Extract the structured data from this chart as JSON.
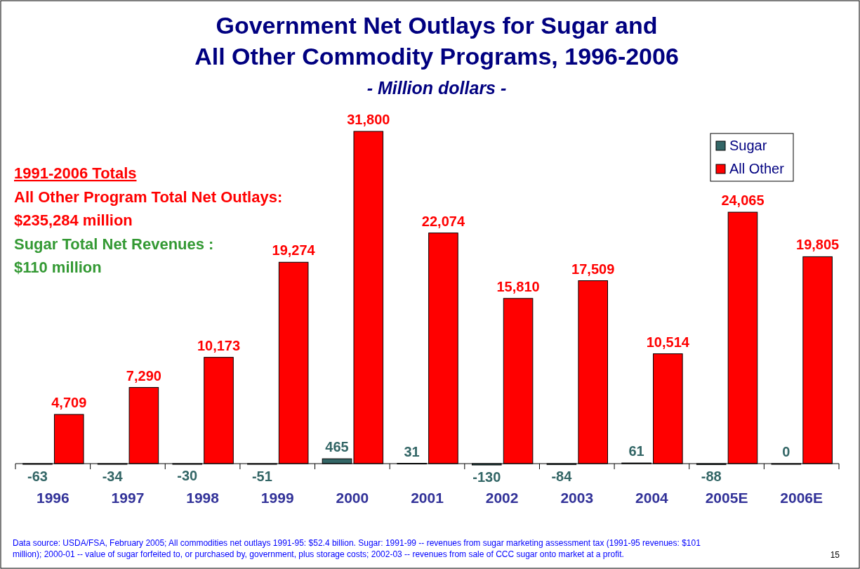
{
  "chart_data": {
    "type": "bar",
    "title": "Government Net Outlays for Sugar and\nAll Other Commodity Programs, 1996-2006",
    "subtitle": "- Million dollars -",
    "categories": [
      "1996",
      "1997",
      "1998",
      "1999",
      "2000",
      "2001",
      "2002",
      "2003",
      "2004",
      "2005E",
      "2006E"
    ],
    "series": [
      {
        "name": "Sugar",
        "color": "#336666",
        "values": [
          -63,
          -34,
          -30,
          -51,
          465,
          31,
          -130,
          -84,
          61,
          -88,
          0
        ],
        "value_labels": [
          "-63",
          "-34",
          "-30",
          "-51",
          "465",
          "31",
          "-130",
          "-84",
          "61",
          "-88",
          "0"
        ]
      },
      {
        "name": "All Other",
        "color": "#ff0000",
        "values": [
          4709,
          7290,
          10173,
          19274,
          31800,
          22074,
          15810,
          17509,
          10514,
          24065,
          19805
        ],
        "value_labels": [
          "4,709",
          "7,290",
          "10,173",
          "19,274",
          "31,800",
          "22,074",
          "15,810",
          "17,509",
          "10,514",
          "24,065",
          "19,805"
        ]
      }
    ],
    "tick_labels": "x",
    "legend": "top right",
    "annotations": [
      "1991-2006 Totals",
      "All Other Program Total Net Outlays:",
      "$235,284 million",
      "Sugar Total Net Revenues :",
      "$110 million",
      "Data source:  USDA/FSA, February 2005; All commodities net outlays 1991-95: $52.4 billion. Sugar: 1991-99 -- revenues from sugar marketing assessment tax (1991-95 revenues: $101",
      "million); 2000-01 -- value of sugar forfeited to, or purchased by, government, plus storage costs; 2002-03 -- revenues from sale of CCC sugar onto market at a profit.",
      "15"
    ]
  }
}
